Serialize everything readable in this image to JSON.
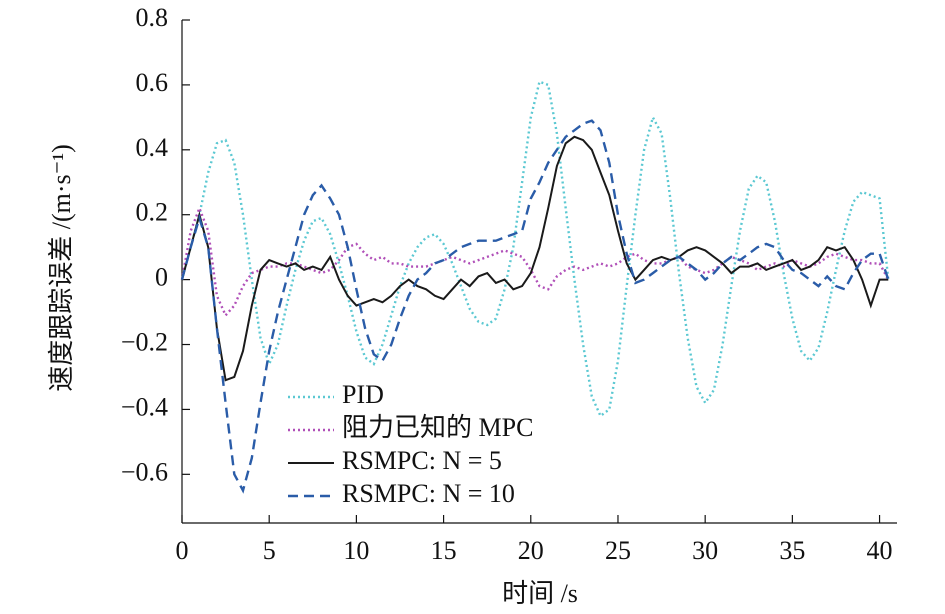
{
  "chart_data": {
    "type": "line",
    "xlabel": "时间 /s",
    "ylabel": "速度跟踪误差 /(m·s⁻¹)",
    "x": [
      0,
      0.5,
      1,
      1.5,
      2,
      2.5,
      3,
      3.5,
      4,
      4.5,
      5,
      5.5,
      6,
      6.5,
      7,
      7.5,
      8,
      8.5,
      9,
      9.5,
      10,
      10.5,
      11,
      11.5,
      12,
      12.5,
      13,
      13.5,
      14,
      14.5,
      15,
      15.5,
      16,
      16.5,
      17,
      17.5,
      18,
      18.5,
      19,
      19.5,
      20,
      20.5,
      21,
      21.5,
      22,
      22.5,
      23,
      23.5,
      24,
      24.5,
      25,
      25.5,
      26,
      26.5,
      27,
      27.5,
      28,
      28.5,
      29,
      29.5,
      30,
      30.5,
      31,
      31.5,
      32,
      32.5,
      33,
      33.5,
      34,
      34.5,
      35,
      35.5,
      36,
      36.5,
      37,
      37.5,
      38,
      38.5,
      39,
      39.5,
      40,
      40.5
    ],
    "series": [
      {
        "name": "PID",
        "color": "#5bc8d2",
        "style": "dotted",
        "values": [
          0,
          0.1,
          0.2,
          0.33,
          0.42,
          0.43,
          0.36,
          0.2,
          0,
          -0.18,
          -0.26,
          -0.2,
          -0.08,
          0.03,
          0.12,
          0.18,
          0.19,
          0.14,
          0.05,
          -0.05,
          -0.16,
          -0.24,
          -0.26,
          -0.2,
          -0.11,
          -0.02,
          0.05,
          0.1,
          0.13,
          0.14,
          0.11,
          0.05,
          -0.02,
          -0.09,
          -0.13,
          -0.14,
          -0.12,
          -0.03,
          0.1,
          0.3,
          0.5,
          0.61,
          0.6,
          0.45,
          0.22,
          0,
          -0.2,
          -0.36,
          -0.42,
          -0.4,
          -0.25,
          -0.02,
          0.2,
          0.4,
          0.5,
          0.45,
          0.25,
          0.02,
          -0.18,
          -0.33,
          -0.38,
          -0.34,
          -0.2,
          -0.02,
          0.15,
          0.28,
          0.32,
          0.3,
          0.18,
          0.02,
          -0.12,
          -0.22,
          -0.25,
          -0.21,
          -0.1,
          0.03,
          0.15,
          0.24,
          0.27,
          0.26,
          0.25,
          0
        ]
      },
      {
        "name": "阻力已知的 MPC",
        "color": "#b04fb8",
        "style": "dotted",
        "values": [
          0,
          0.15,
          0.22,
          0.15,
          -0.05,
          -0.11,
          -0.08,
          -0.02,
          0.02,
          0.03,
          0.04,
          0.04,
          0.05,
          0.05,
          0.04,
          0.03,
          0.02,
          0.03,
          0.06,
          0.1,
          0.11,
          0.08,
          0.06,
          0.07,
          0.05,
          0.05,
          0.04,
          0.04,
          0.04,
          0.05,
          0.06,
          0.07,
          0.06,
          0.05,
          0.06,
          0.07,
          0.08,
          0.09,
          0.08,
          0.07,
          0.03,
          -0.02,
          -0.03,
          0.01,
          0.03,
          0.04,
          0.03,
          0.04,
          0.05,
          0.04,
          0.05,
          0.07,
          0.08,
          0.06,
          0.05,
          0.05,
          0.06,
          0.07,
          0.04,
          0.03,
          0.02,
          0.03,
          0.05,
          0.07,
          0.06,
          0.05,
          0.03,
          0.04,
          0.05,
          0.04,
          0.06,
          0.05,
          0.04,
          0.05,
          0.07,
          0.08,
          0.07,
          0.06,
          0.06,
          0.05,
          0.05,
          0
        ]
      },
      {
        "name": "RSMPC: N = 5",
        "color": "#1a1a1a",
        "style": "solid",
        "values": [
          0,
          0.1,
          0.2,
          0.1,
          -0.15,
          -0.31,
          -0.3,
          -0.22,
          -0.08,
          0.03,
          0.06,
          0.05,
          0.04,
          0.05,
          0.03,
          0.04,
          0.03,
          0.07,
          0,
          -0.05,
          -0.08,
          -0.07,
          -0.06,
          -0.07,
          -0.05,
          -0.02,
          0,
          -0.02,
          -0.03,
          -0.05,
          -0.06,
          -0.03,
          0,
          -0.02,
          0.01,
          0.02,
          -0.01,
          0,
          -0.03,
          -0.02,
          0.02,
          0.1,
          0.22,
          0.35,
          0.42,
          0.44,
          0.43,
          0.4,
          0.33,
          0.26,
          0.15,
          0.05,
          0,
          0.03,
          0.06,
          0.07,
          0.06,
          0.07,
          0.09,
          0.1,
          0.09,
          0.07,
          0.05,
          0.02,
          0.04,
          0.04,
          0.05,
          0.03,
          0.04,
          0.05,
          0.06,
          0.03,
          0.04,
          0.06,
          0.1,
          0.09,
          0.1,
          0.06,
          0,
          -0.08,
          0,
          0
        ]
      },
      {
        "name": "RSMPC: N = 10",
        "color": "#2a5ca8",
        "style": "dashed",
        "values": [
          0,
          0.1,
          0.19,
          0.1,
          -0.15,
          -0.38,
          -0.6,
          -0.65,
          -0.55,
          -0.38,
          -0.22,
          -0.1,
          0,
          0.1,
          0.2,
          0.26,
          0.29,
          0.25,
          0.2,
          0.1,
          -0.03,
          -0.15,
          -0.23,
          -0.25,
          -0.2,
          -0.12,
          -0.05,
          0,
          0.02,
          0.05,
          0.06,
          0.08,
          0.1,
          0.11,
          0.12,
          0.12,
          0.12,
          0.13,
          0.14,
          0.15,
          0.25,
          0.3,
          0.36,
          0.4,
          0.44,
          0.46,
          0.48,
          0.49,
          0.46,
          0.36,
          0.2,
          0.08,
          -0.01,
          0,
          0.02,
          0.04,
          0.06,
          0.07,
          0.05,
          0.03,
          0,
          0.02,
          0.05,
          0.07,
          0.06,
          0.08,
          0.1,
          0.11,
          0.1,
          0.06,
          0.03,
          0.02,
          0,
          -0.02,
          0.01,
          -0.02,
          -0.03,
          0.02,
          0.06,
          0.08,
          0.08,
          0
        ]
      }
    ],
    "xlim": [
      0,
      41
    ],
    "ylim": [
      -0.75,
      0.8
    ],
    "xticks": [
      0,
      5,
      10,
      15,
      20,
      25,
      30,
      35,
      40
    ],
    "yticks": [
      {
        "value": -0.6,
        "label": "−0.6"
      },
      {
        "value": -0.4,
        "label": "−0.4"
      },
      {
        "value": -0.2,
        "label": "−0.2"
      },
      0,
      0.2,
      0.4,
      0.6,
      0.8
    ],
    "legend": "lower left",
    "grid": false
  }
}
